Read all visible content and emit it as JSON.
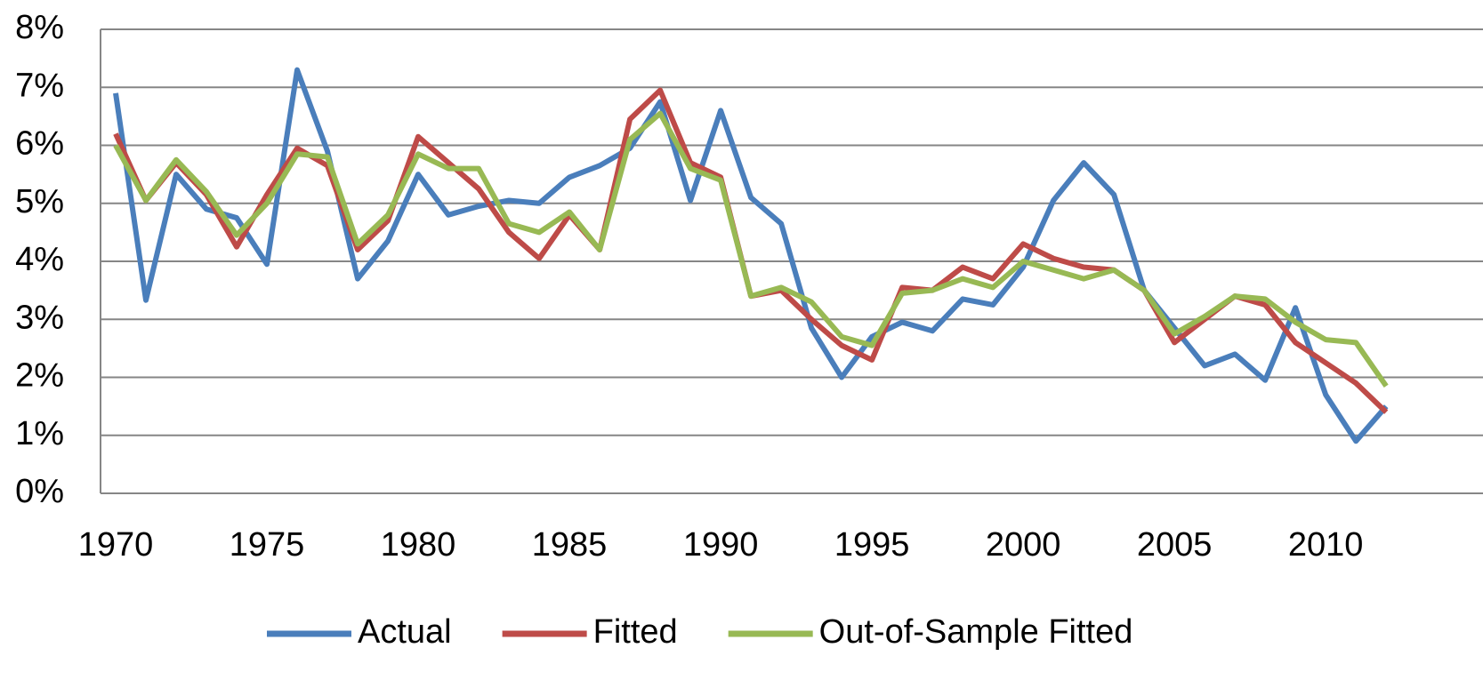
{
  "chart_data": {
    "type": "line",
    "x": [
      1970,
      1971,
      1972,
      1973,
      1974,
      1975,
      1976,
      1977,
      1978,
      1979,
      1980,
      1981,
      1982,
      1983,
      1984,
      1985,
      1986,
      1987,
      1988,
      1989,
      1990,
      1991,
      1992,
      1993,
      1994,
      1995,
      1996,
      1997,
      1998,
      1999,
      2000,
      2001,
      2002,
      2003,
      2004,
      2005,
      2006,
      2007,
      2008,
      2009,
      2010,
      2011,
      2012
    ],
    "series": [
      {
        "name": "Actual",
        "color": "#4a7ebb",
        "values": [
          6.9,
          3.33,
          5.5,
          4.9,
          4.75,
          3.95,
          7.3,
          5.9,
          3.7,
          4.35,
          5.5,
          4.8,
          4.95,
          5.05,
          5.0,
          5.45,
          5.65,
          5.95,
          6.75,
          5.05,
          6.6,
          5.1,
          4.65,
          2.85,
          2.0,
          2.7,
          2.95,
          2.8,
          3.35,
          3.25,
          3.9,
          5.05,
          5.7,
          5.15,
          3.5,
          2.85,
          2.2,
          2.4,
          1.95,
          3.2,
          1.7,
          0.9,
          1.5
        ]
      },
      {
        "name": "Fitted",
        "color": "#be4b48",
        "values": [
          6.2,
          5.05,
          5.7,
          5.15,
          4.25,
          5.15,
          5.95,
          5.65,
          4.2,
          4.7,
          6.15,
          5.7,
          5.25,
          4.5,
          4.05,
          4.8,
          4.2,
          6.45,
          6.95,
          5.7,
          5.45,
          3.4,
          3.5,
          3.0,
          2.55,
          2.3,
          3.55,
          3.5,
          3.9,
          3.7,
          4.3,
          4.05,
          3.9,
          3.85,
          3.5,
          2.6,
          3.0,
          3.4,
          3.25,
          2.6,
          2.25,
          1.9,
          1.4
        ]
      },
      {
        "name": "Out-of-Sample Fitted",
        "color": "#98b954",
        "values": [
          6.0,
          5.05,
          5.75,
          5.2,
          4.45,
          5.0,
          5.85,
          5.8,
          4.3,
          4.8,
          5.85,
          5.6,
          5.6,
          4.65,
          4.5,
          4.85,
          4.2,
          6.1,
          6.55,
          5.6,
          5.4,
          3.4,
          3.55,
          3.3,
          2.7,
          2.55,
          3.45,
          3.5,
          3.7,
          3.55,
          4.0,
          3.85,
          3.7,
          3.85,
          3.5,
          2.75,
          3.05,
          3.4,
          3.35,
          2.95,
          2.65,
          2.6,
          1.85
        ]
      }
    ],
    "xlim": [
      1969.5,
      2015.2
    ],
    "xticks": [
      1970,
      1975,
      1980,
      1985,
      1990,
      1995,
      2000,
      2005,
      2010
    ],
    "ylim": [
      0,
      8
    ],
    "yticks": [
      {
        "value": 0,
        "label": "0%"
      },
      {
        "value": 1,
        "label": "1%"
      },
      {
        "value": 2,
        "label": "2%"
      },
      {
        "value": 3,
        "label": "3%"
      },
      {
        "value": 4,
        "label": "4%"
      },
      {
        "value": 5,
        "label": "5%"
      },
      {
        "value": 6,
        "label": "6%"
      },
      {
        "value": 7,
        "label": "7%"
      },
      {
        "value": 8,
        "label": "8%"
      }
    ],
    "grid": true,
    "legend": "bottom"
  }
}
